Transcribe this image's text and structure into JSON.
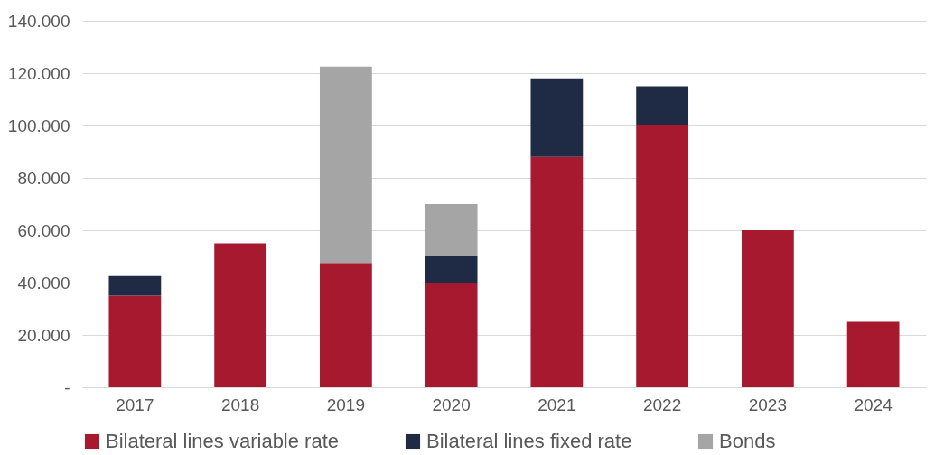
{
  "chart_data": {
    "type": "bar",
    "stacked": true,
    "categories": [
      "2017",
      "2018",
      "2019",
      "2020",
      "2021",
      "2022",
      "2023",
      "2024"
    ],
    "series": [
      {
        "name": "Bilateral lines variable rate",
        "color": "#a6192e",
        "values": [
          35,
          55,
          47.5,
          40,
          88,
          100,
          60,
          25
        ]
      },
      {
        "name": "Bilateral lines fixed rate",
        "color": "#1f2a44",
        "values": [
          7.5,
          null,
          null,
          10,
          30,
          15,
          null,
          null
        ]
      },
      {
        "name": "Bonds",
        "color": "#a5a5a5",
        "values": [
          null,
          null,
          75,
          20,
          null,
          null,
          null,
          null
        ]
      }
    ],
    "ylim": [
      0,
      140
    ],
    "yticks": [
      {
        "value": 0,
        "label": "-"
      },
      {
        "value": 20,
        "label": "20.000"
      },
      {
        "value": 40,
        "label": "40.000"
      },
      {
        "value": 60,
        "label": "60.000"
      },
      {
        "value": 80,
        "label": "80.000"
      },
      {
        "value": 100,
        "label": "100.000"
      },
      {
        "value": 120,
        "label": "120.000"
      },
      {
        "value": 140,
        "label": "140.000"
      }
    ],
    "grid": "y",
    "legend": "bottom"
  }
}
